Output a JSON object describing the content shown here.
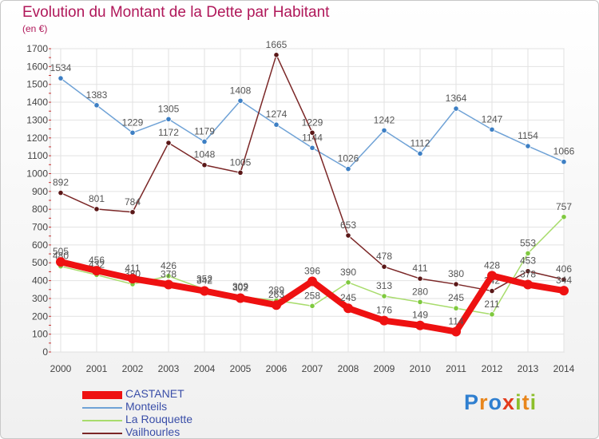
{
  "chart_data": {
    "type": "line",
    "title": "Evolution du Montant de la Dette par Habitant",
    "subtitle": "(en €)",
    "x": [
      "2000",
      "2001",
      "2002",
      "2003",
      "2004",
      "2005",
      "2006",
      "2007",
      "2008",
      "2009",
      "2010",
      "2011",
      "2012",
      "2013",
      "2014"
    ],
    "y_ticks": [
      "0",
      "100",
      "200",
      "300",
      "400",
      "500",
      "600",
      "700",
      "800",
      "900",
      "1000",
      "1100",
      "1200",
      "1300",
      "1400",
      "1500",
      "1600",
      "1700"
    ],
    "ylim": [
      0,
      1700
    ],
    "grid": true,
    "legend_position": "bottom-left",
    "series": [
      {
        "name": "Monteils",
        "color": "#6fa2d6",
        "marker": "#3d7fc4",
        "values": [
          1534,
          1383,
          1229,
          1305,
          1179,
          1408,
          1274,
          1144,
          1026,
          1242,
          1112,
          1364,
          1247,
          1154,
          1066
        ]
      },
      {
        "name": "La Rouquette",
        "color": "#a8dc6c",
        "marker": "#7fc93f",
        "values": [
          480,
          432,
          380,
          426,
          352,
          309,
          289,
          258,
          390,
          313,
          280,
          245,
          211,
          553,
          757
        ]
      },
      {
        "name": "Vailhourles",
        "color": "#7b2727",
        "marker": "#5a1717",
        "values": [
          892,
          801,
          784,
          1172,
          1048,
          1005,
          1665,
          1229,
          653,
          478,
          411,
          380,
          342,
          453,
          406
        ]
      },
      {
        "name": "CASTANET",
        "color": "#ee1111",
        "marker": "#ee1111",
        "values": [
          505,
          456,
          411,
          378,
          342,
          302,
          263,
          396,
          245,
          176,
          149,
          114,
          428,
          378,
          344
        ]
      }
    ],
    "legend_order": [
      "CASTANET",
      "Monteils",
      "La Rouquette",
      "Vailhourles"
    ]
  },
  "logo": {
    "letters": [
      "P",
      "r",
      "o",
      "x",
      "i",
      "t",
      "i"
    ]
  }
}
